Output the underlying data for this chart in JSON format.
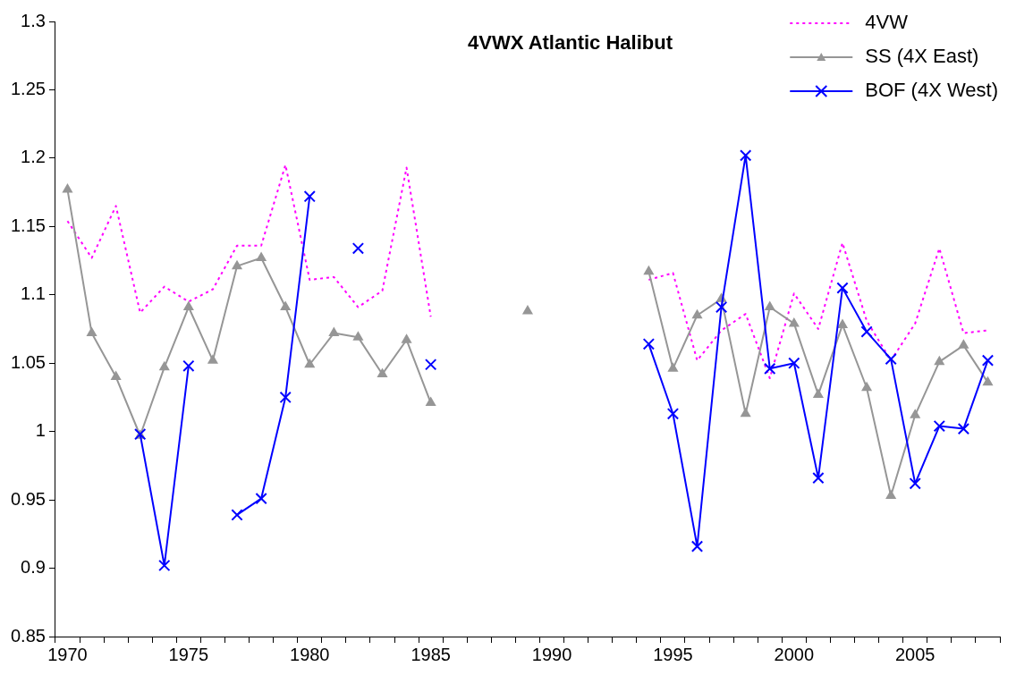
{
  "chart_data": {
    "type": "line",
    "title": "4VWX Atlantic Halibut",
    "categories": [
      "1970",
      null,
      null,
      null,
      null,
      "1975",
      null,
      null,
      null,
      null,
      "1980",
      null,
      null,
      null,
      null,
      "1985",
      null,
      null,
      null,
      null,
      "1990",
      null,
      null,
      null,
      null,
      "1995",
      null,
      null,
      null,
      null,
      "2000",
      null,
      null,
      null,
      null,
      "2005",
      null,
      null,
      null
    ],
    "series": [
      {
        "name": "4VW",
        "color": "#ff00ff",
        "marker": "none",
        "line_style": "dotted",
        "values": [
          1.154,
          1.127,
          1.165,
          1.087,
          1.106,
          1.095,
          1.104,
          1.136,
          1.136,
          1.195,
          1.111,
          1.113,
          1.091,
          1.103,
          1.193,
          1.084,
          null,
          null,
          null,
          null,
          null,
          null,
          null,
          null,
          1.111,
          1.116,
          1.052,
          1.074,
          1.086,
          1.039,
          1.101,
          1.075,
          1.138,
          1.081,
          1.052,
          1.079,
          1.134,
          1.072,
          1.074
        ]
      },
      {
        "name": "SS (4X East)",
        "color": "#969696",
        "marker": "triangle",
        "line_style": "solid",
        "values": [
          1.177,
          1.072,
          1.04,
          0.997,
          1.047,
          1.091,
          1.052,
          1.121,
          1.127,
          1.091,
          1.049,
          1.072,
          1.069,
          1.042,
          1.067,
          1.021,
          null,
          null,
          null,
          1.088,
          null,
          null,
          null,
          null,
          1.117,
          1.046,
          1.085,
          1.097,
          1.013,
          1.091,
          1.079,
          1.027,
          1.078,
          1.032,
          0.953,
          1.012,
          1.051,
          1.063,
          1.036
        ]
      },
      {
        "name": "BOF (4X West)",
        "color": "#0000ff",
        "marker": "cross",
        "line_style": "solid",
        "values": [
          null,
          null,
          null,
          0.998,
          0.902,
          1.048,
          null,
          0.939,
          0.951,
          1.025,
          1.172,
          null,
          1.134,
          null,
          null,
          1.049,
          null,
          null,
          null,
          null,
          null,
          null,
          null,
          null,
          1.064,
          1.013,
          0.916,
          1.091,
          1.202,
          1.046,
          1.05,
          0.966,
          1.105,
          1.073,
          1.053,
          0.962,
          1.004,
          1.002,
          1.052
        ]
      }
    ],
    "ylim": [
      0.85,
      1.3
    ],
    "yticks": [
      0.85,
      0.9,
      0.95,
      1,
      1.05,
      1.1,
      1.15,
      1.2,
      1.25,
      1.3
    ],
    "grid": false,
    "legend": "top right"
  }
}
